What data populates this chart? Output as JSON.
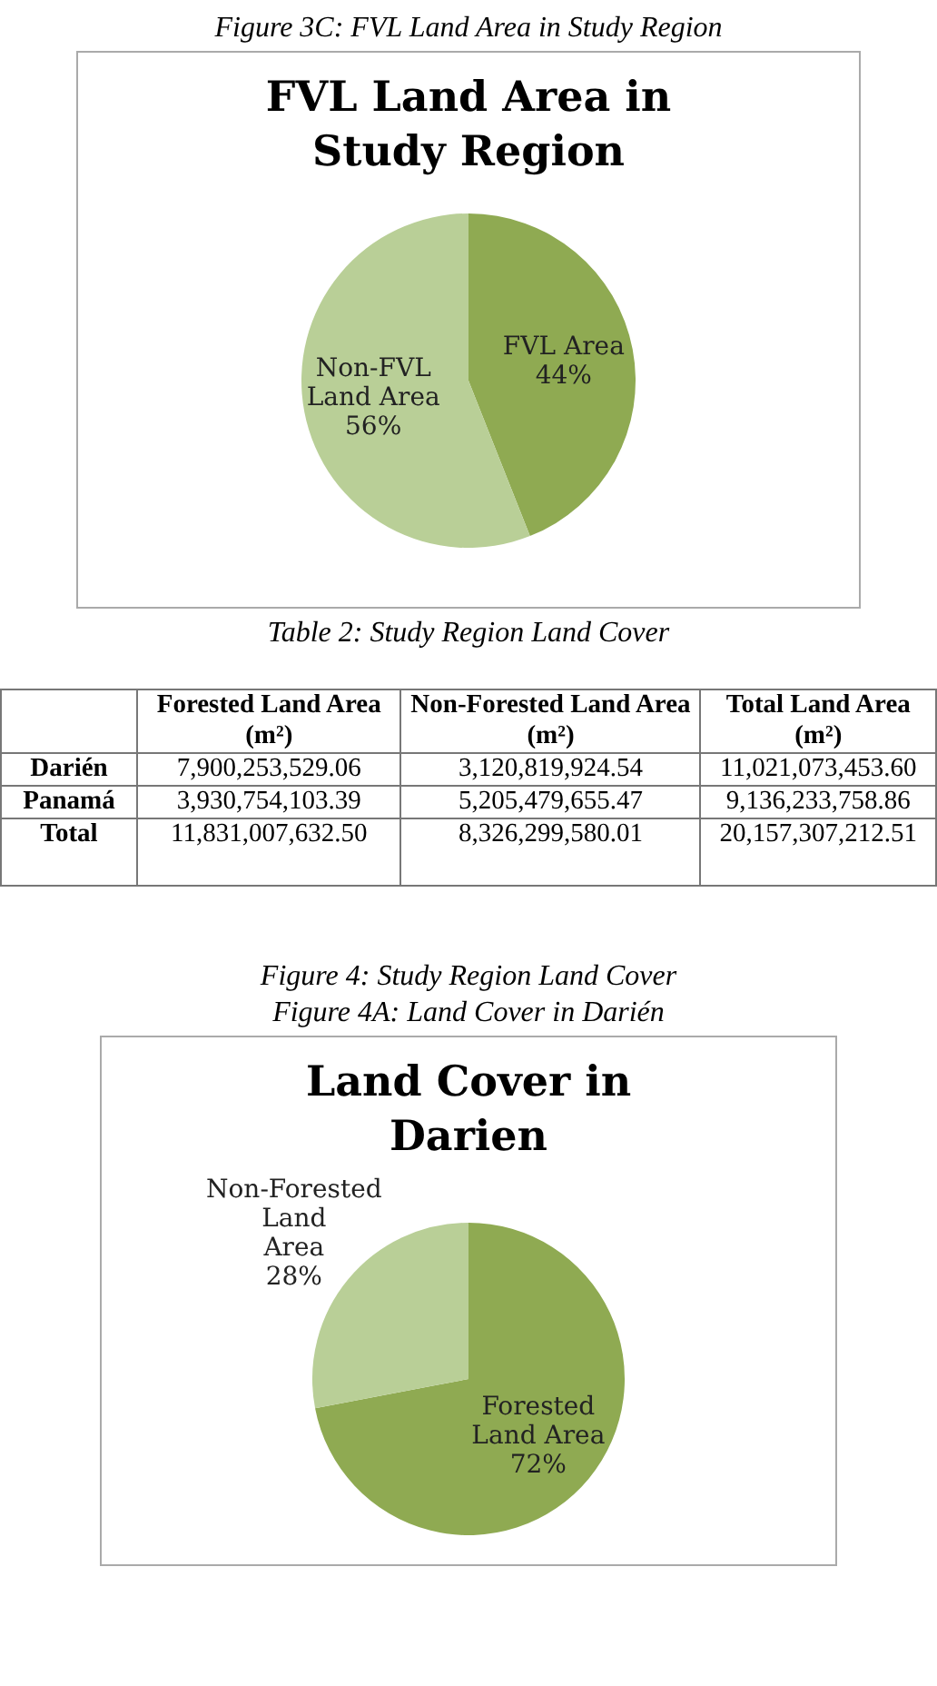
{
  "chart_data": [
    {
      "type": "pie",
      "title": "FVL Land Area in Study Region",
      "annotations": [
        "Figure 3C: FVL Land Area in Study Region"
      ],
      "categories": [
        "FVL Area",
        "Non-FVL Land Area"
      ],
      "values": [
        44,
        56
      ],
      "colors": [
        "#8faa52",
        "#b9cf97"
      ],
      "value_labels": [
        "44%",
        "56%"
      ],
      "legend": false
    },
    {
      "type": "other",
      "title": "Table 2: Study Region Land Cover",
      "categories": [
        null,
        "Forested Land Area (m²)",
        "Non-Forested Land Area (m²)",
        "Total Land Area (m²)"
      ],
      "y_categories": [
        "Darién",
        "Panamá",
        "Total"
      ],
      "cell_labels": [
        [
          "7,900,253,529.06",
          "3,120,819,924.54",
          "11,021,073,453.60"
        ],
        [
          "3,930,754,103.39",
          "5,205,479,655.47",
          "9,136,233,758.86"
        ],
        [
          "11,831,007,632.50",
          "8,326,299,580.01",
          "20,157,307,212.51"
        ]
      ]
    },
    {
      "type": "pie",
      "title": "Land Cover in Darien",
      "annotations": [
        "Figure 4: Study Region Land Cover",
        "Figure 4A: Land Cover in Darién"
      ],
      "categories": [
        "Forested Land Area",
        "Non-Forested Land Area"
      ],
      "values": [
        72,
        28
      ],
      "colors": [
        "#8faa52",
        "#b9cf97"
      ],
      "value_labels": [
        "72%",
        "28%"
      ],
      "legend": false
    }
  ]
}
